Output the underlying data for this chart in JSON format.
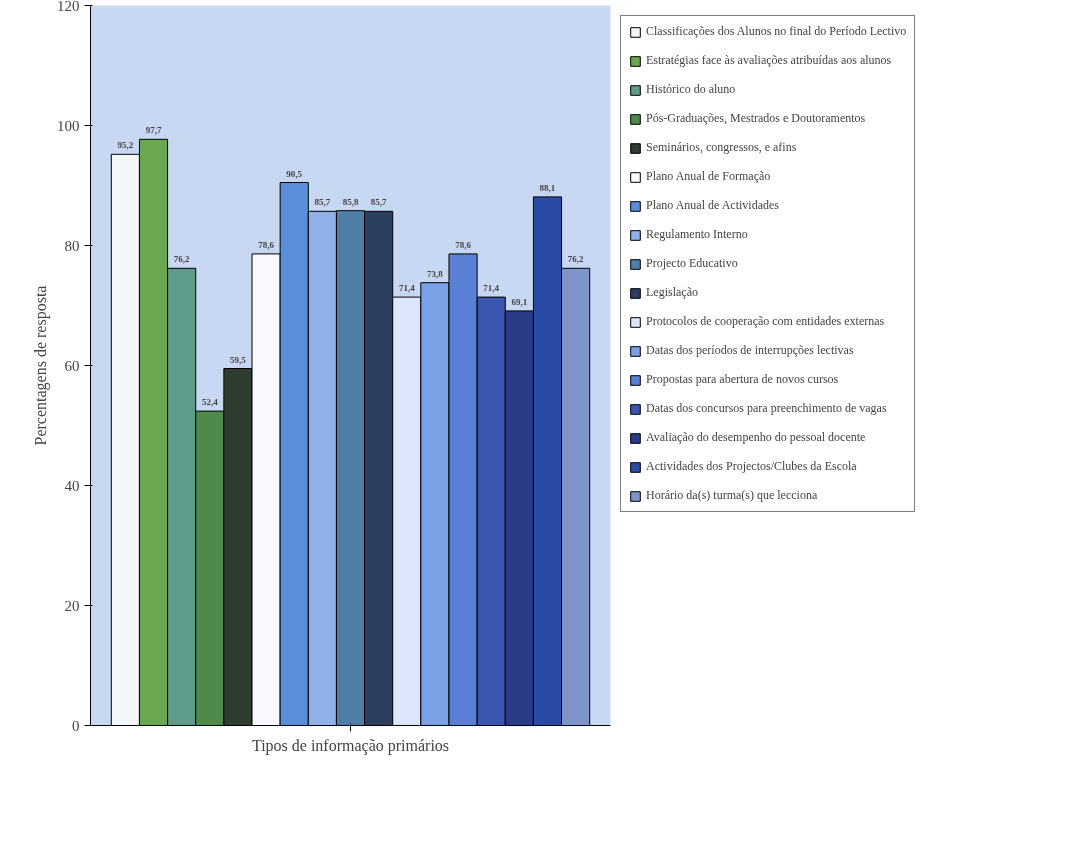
{
  "chart_data": {
    "type": "bar",
    "xlabel": "Tipos de informação primários",
    "ylabel": "Percentagens de resposta",
    "categories": [
      null
    ],
    "ylim": [
      0,
      120
    ],
    "yticks": [
      0,
      20,
      40,
      60,
      80,
      100,
      120
    ],
    "grid": false,
    "legend": "right",
    "series": [
      {
        "name": "Classificações dos Alunos no final do Período Lectivo",
        "color": "#f2f6f6",
        "values": [
          95.2
        ],
        "value_labels": [
          "95,2"
        ]
      },
      {
        "name": "Estratégias face às avaliações atribuídas aos alunos",
        "color": "#6aa84f",
        "values": [
          97.7
        ],
        "value_labels": [
          "97,7"
        ]
      },
      {
        "name": "Histórico do aluno",
        "color": "#5f9b8a",
        "values": [
          76.2
        ],
        "value_labels": [
          "76,2"
        ]
      },
      {
        "name": "Pós-Graduações, Mestrados e Doutoramentos",
        "color": "#4e8a4a",
        "values": [
          52.4
        ],
        "value_labels": [
          "52,4"
        ]
      },
      {
        "name": "Seminários, congressos, e afins",
        "color": "#2e3d30",
        "values": [
          59.5
        ],
        "value_labels": [
          "59,5"
        ]
      },
      {
        "name": "Plano Anual de Formação",
        "color": "#f8f8ff",
        "values": [
          78.6
        ],
        "value_labels": [
          "78,6"
        ]
      },
      {
        "name": "Plano Anual de Actividades",
        "color": "#5b8ed8",
        "values": [
          90.5
        ],
        "value_labels": [
          "90,5"
        ]
      },
      {
        "name": "Regulamento Interno",
        "color": "#8fb0e8",
        "values": [
          85.7
        ],
        "value_labels": [
          "85,7"
        ]
      },
      {
        "name": "Projecto Educativo",
        "color": "#4f7ea8",
        "values": [
          85.8
        ],
        "value_labels": [
          "85,8"
        ]
      },
      {
        "name": "Legislação",
        "color": "#2c3e60",
        "values": [
          85.7
        ],
        "value_labels": [
          "85,7"
        ]
      },
      {
        "name": "Protocolos de cooperação com entidades externas",
        "color": "#dce6fa",
        "values": [
          71.4
        ],
        "value_labels": [
          "71,4"
        ]
      },
      {
        "name": "Datas dos períodos de interrupções lectivas",
        "color": "#7aa0e6",
        "values": [
          73.8
        ],
        "value_labels": [
          "73,8"
        ]
      },
      {
        "name": "Propostas para abertura de novos cursos",
        "color": "#5a7fd6",
        "values": [
          78.6
        ],
        "value_labels": [
          "78,6"
        ]
      },
      {
        "name": "Datas dos concursos para preenchimento de vagas",
        "color": "#3a56b0",
        "values": [
          71.4
        ],
        "value_labels": [
          "71,4"
        ]
      },
      {
        "name": "Avaliação do desempenho do pessoal docente",
        "color": "#283c88",
        "values": [
          69.1
        ],
        "value_labels": [
          "69,1"
        ]
      },
      {
        "name": "Actividades dos Projectos/Clubes da Escola",
        "color": "#2b4aa8",
        "values": [
          88.1
        ],
        "value_labels": [
          "88,1"
        ]
      },
      {
        "name": "Horário da(s) turma(s) que lecciona",
        "color": "#7f94c8",
        "values": [
          76.2
        ],
        "value_labels": [
          "76,2"
        ]
      }
    ]
  }
}
